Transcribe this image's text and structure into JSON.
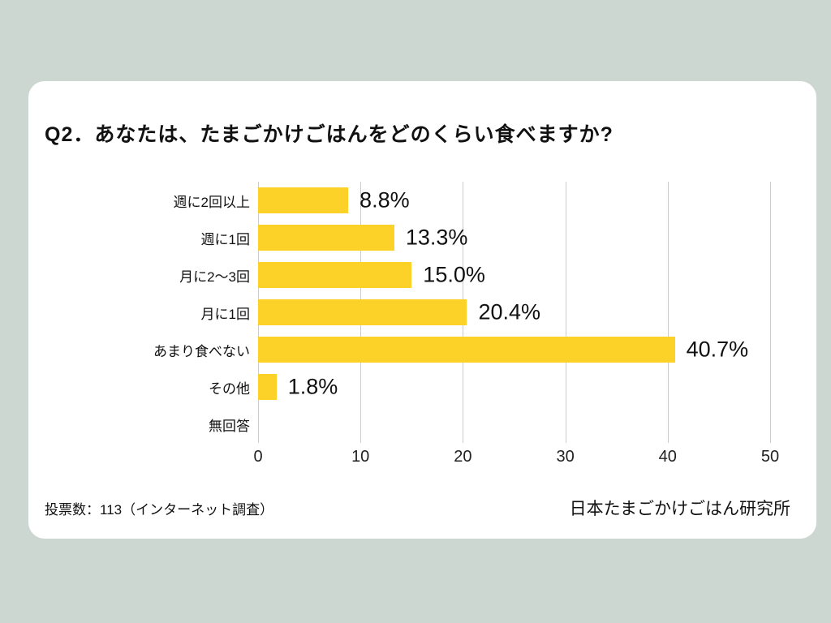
{
  "title": "Q2．あなたは、たまごかけごはんをどのくらい食べますか?",
  "colors": {
    "background": "#CCD7D2",
    "card": "#FFFFFF",
    "bar": "#FCD228",
    "gridline": "#CCCCCC",
    "text": "#111111"
  },
  "chart_data": {
    "type": "bar",
    "orientation": "horizontal",
    "title": "Q2．あなたは、たまごかけごはんをどのくらい食べますか?",
    "categories": [
      "週に2回以上",
      "週に1回",
      "月に2～3回",
      "月に1回",
      "あまり食べない",
      "その他",
      "無回答"
    ],
    "values": [
      8.8,
      13.3,
      15.0,
      20.4,
      40.7,
      1.8,
      0
    ],
    "value_labels": [
      "8.8%",
      "13.3%",
      "15.0%",
      "20.4%",
      "40.7%",
      "1.8%",
      ""
    ],
    "xlabel": "",
    "ylabel": "",
    "xlim": [
      0,
      50
    ],
    "x_ticks": [
      0,
      10,
      20,
      30,
      40,
      50
    ],
    "grid": true,
    "legend": false,
    "bar_color": "#FCD228",
    "gridline_color": "#CCCCCC"
  },
  "footer": {
    "left": "投票数：113（インターネット調査）",
    "right": "日本たまごかけごはん研究所"
  }
}
